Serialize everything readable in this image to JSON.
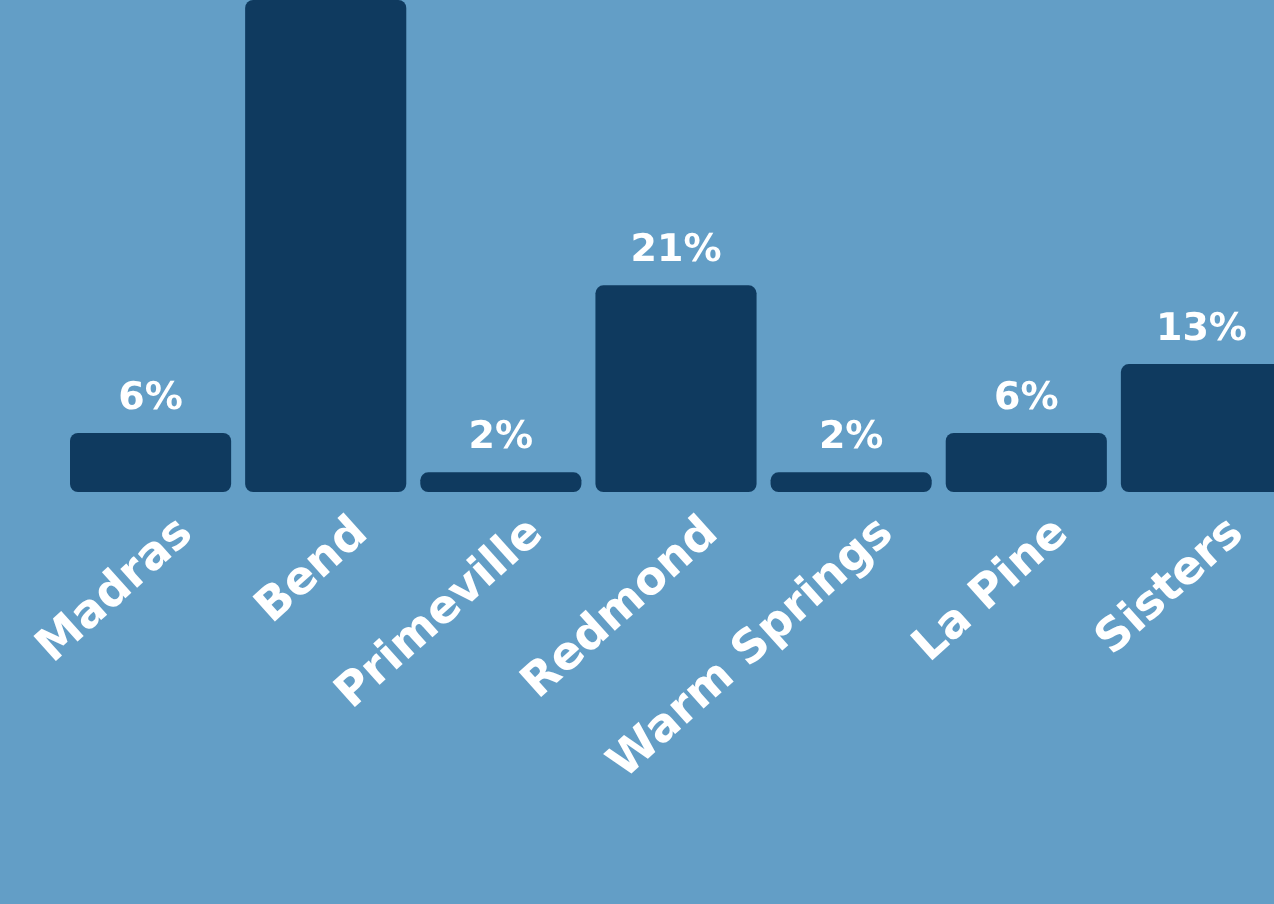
{
  "chart_data": {
    "type": "bar",
    "categories": [
      "Madras",
      "Bend",
      "Primeville",
      "Redmond",
      "Warm Springs",
      "La Pine",
      "Sisters"
    ],
    "values": [
      6,
      50,
      2,
      21,
      2,
      6,
      13
    ],
    "value_labels": [
      "6%",
      null,
      "2%",
      "21%",
      "2%",
      "6%",
      "13%"
    ],
    "color": "#0f3a5f"
  }
}
